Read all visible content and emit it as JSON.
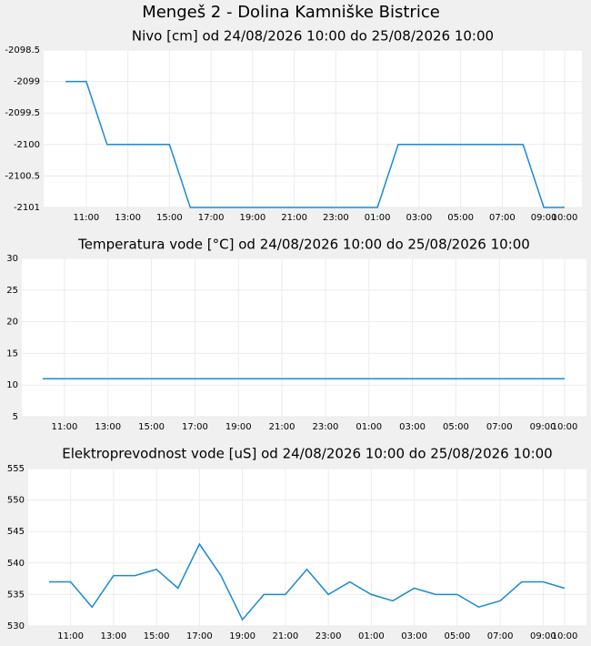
{
  "title": "Mengeš 2 - Dolina Kamniške Bistrice",
  "chart_data": [
    {
      "type": "line",
      "title": "Nivo [cm] od 24/08/2026 10:00 do 25/08/2026 10:00",
      "categories": [
        null,
        "11:00",
        null,
        "13:00",
        null,
        "15:00",
        null,
        "17:00",
        null,
        "19:00",
        null,
        "21:00",
        null,
        "23:00",
        null,
        "01:00",
        null,
        "03:00",
        null,
        "05:00",
        null,
        "07:00",
        null,
        "09:00",
        "10:00"
      ],
      "values": [
        -2099,
        -2099,
        -2100,
        -2100,
        -2100,
        -2100,
        -2101,
        -2101,
        -2101,
        -2101,
        -2101,
        -2101,
        -2101,
        -2101,
        -2101,
        -2101,
        -2100,
        -2100,
        -2100,
        -2100,
        -2100,
        -2100,
        -2100,
        -2101,
        -2101
      ],
      "color": "#1a8ad4",
      "ylim": [
        -2101,
        -2098.5
      ],
      "yticks": [
        -2101,
        -2100.5,
        -2100,
        -2099.5,
        -2099,
        -2098.5
      ],
      "grid": true
    },
    {
      "type": "line",
      "title": "Temperatura vode [°C] od 24/08/2026 10:00 do 25/08/2026 10:00",
      "categories": [
        null,
        "11:00",
        null,
        "13:00",
        null,
        "15:00",
        null,
        "17:00",
        null,
        "19:00",
        null,
        "21:00",
        null,
        "23:00",
        null,
        "01:00",
        null,
        "03:00",
        null,
        "05:00",
        null,
        "07:00",
        null,
        "09:00",
        "10:00"
      ],
      "values": [
        11,
        11,
        11,
        11,
        11,
        11,
        11,
        11,
        11,
        11,
        11,
        11,
        11,
        11,
        11,
        11,
        11,
        11,
        11,
        11,
        11,
        11,
        11,
        11,
        11
      ],
      "color": "#1a8ad4",
      "ylim": [
        5,
        30
      ],
      "yticks": [
        5,
        10,
        15,
        20,
        25,
        30
      ],
      "grid": true
    },
    {
      "type": "line",
      "title": "Elektroprevodnost vode [uS] od 24/08/2026 10:00 do 25/08/2026 10:00",
      "categories": [
        null,
        "11:00",
        null,
        "13:00",
        null,
        "15:00",
        null,
        "17:00",
        null,
        "19:00",
        null,
        "21:00",
        null,
        "23:00",
        null,
        "01:00",
        null,
        "03:00",
        null,
        "05:00",
        null,
        "07:00",
        null,
        "09:00",
        "10:00"
      ],
      "values": [
        537,
        537,
        533,
        538,
        538,
        539,
        536,
        543,
        538,
        531,
        535,
        535,
        539,
        535,
        537,
        535,
        534,
        536,
        535,
        535,
        533,
        534,
        537,
        537,
        536
      ],
      "color": "#1a8ad4",
      "ylim": [
        530,
        555
      ],
      "yticks": [
        530,
        535,
        540,
        545,
        550,
        555
      ],
      "grid": true
    }
  ]
}
